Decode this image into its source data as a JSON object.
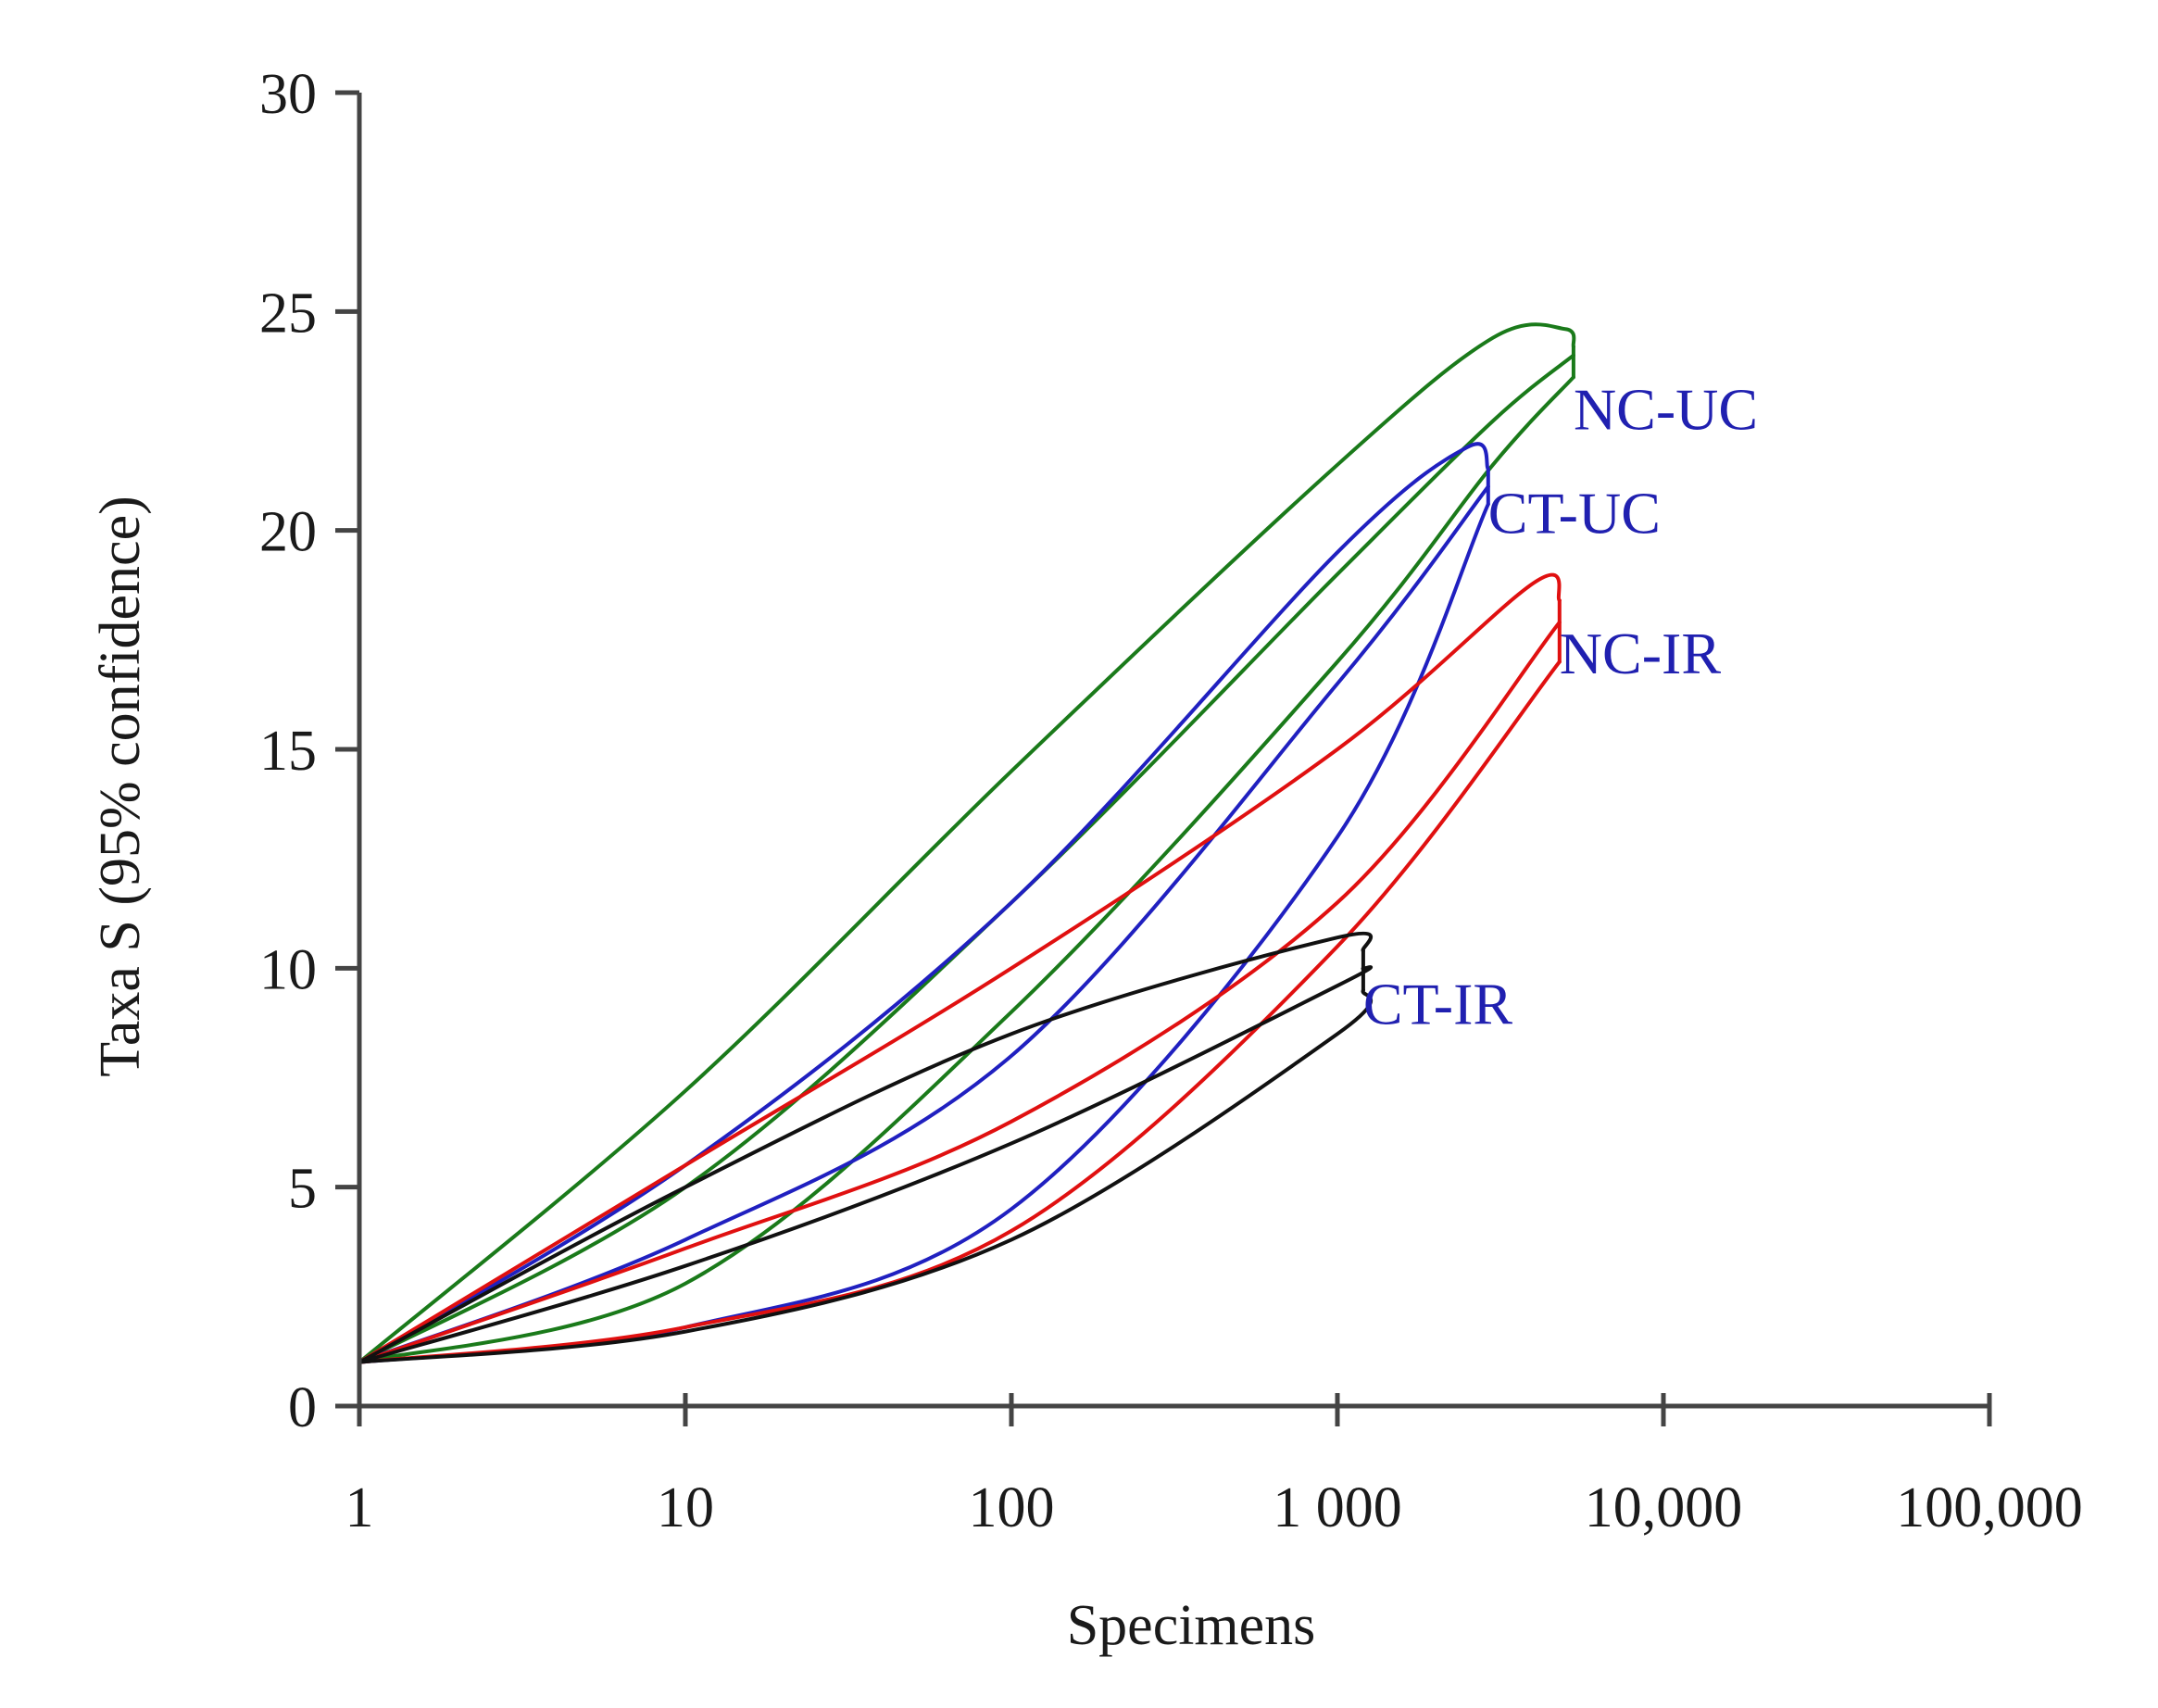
{
  "chart_data": {
    "type": "line",
    "title": "",
    "xlabel": "Specimens",
    "ylabel": "Taxa S (95% confidence)",
    "xscale": "log",
    "xlim": [
      1,
      100000
    ],
    "ylim": [
      0,
      30
    ],
    "x_ticks": [
      1,
      10,
      100,
      1000,
      10000,
      100000
    ],
    "x_tick_labels": [
      "1",
      "10",
      "100",
      "1 000",
      "10,000",
      "100,000"
    ],
    "y_ticks": [
      0,
      5,
      10,
      15,
      20,
      25,
      30
    ],
    "y_tick_labels": [
      "0",
      "5",
      "10",
      "15",
      "20",
      "25",
      "30"
    ],
    "grid": false,
    "legend": "direct labels at curve ends",
    "series": [
      {
        "name": "NC-UC",
        "label": "NC-UC",
        "color": "#1a7a1a",
        "label_color": "#2020b0",
        "upper": [
          [
            1,
            1
          ],
          [
            10,
            7.2
          ],
          [
            100,
            14.5
          ],
          [
            1000,
            21.5
          ],
          [
            3000,
            24.4
          ],
          [
            5000,
            24.6
          ],
          [
            5300,
            24.2
          ]
        ],
        "mean": [
          [
            1,
            1
          ],
          [
            10,
            5.0
          ],
          [
            100,
            11.5
          ],
          [
            1000,
            19.0
          ],
          [
            3000,
            22.5
          ],
          [
            5300,
            24.0
          ]
        ],
        "lower": [
          [
            1,
            1
          ],
          [
            10,
            2.8
          ],
          [
            100,
            9.0
          ],
          [
            1000,
            17.0
          ],
          [
            3000,
            21.5
          ],
          [
            5300,
            23.5
          ]
        ]
      },
      {
        "name": "CT-UC",
        "label": "CT-UC",
        "color": "#2020c0",
        "label_color": "#2020b0",
        "upper": [
          [
            1,
            1
          ],
          [
            10,
            5.5
          ],
          [
            100,
            11.5
          ],
          [
            1000,
            19.5
          ],
          [
            2500,
            21.9
          ],
          [
            2900,
            21.4
          ]
        ],
        "mean": [
          [
            1,
            1
          ],
          [
            10,
            3.8
          ],
          [
            100,
            8.0
          ],
          [
            1000,
            16.5
          ],
          [
            2900,
            21.0
          ]
        ],
        "lower": [
          [
            1,
            1
          ],
          [
            10,
            1.8
          ],
          [
            100,
            4.5
          ],
          [
            1000,
            13.0
          ],
          [
            2900,
            20.6
          ]
        ]
      },
      {
        "name": "NC-IR",
        "label": "NC-IR",
        "color": "#e01010",
        "label_color": "#2020b0",
        "upper": [
          [
            1,
            1
          ],
          [
            10,
            5.5
          ],
          [
            100,
            10.0
          ],
          [
            1000,
            15.0
          ],
          [
            4000,
            18.8
          ],
          [
            4800,
            18.4
          ]
        ],
        "mean": [
          [
            1,
            1
          ],
          [
            10,
            3.6
          ],
          [
            100,
            6.5
          ],
          [
            1000,
            11.5
          ],
          [
            4800,
            17.9
          ]
        ],
        "lower": [
          [
            1,
            1
          ],
          [
            10,
            1.8
          ],
          [
            100,
            4.0
          ],
          [
            1000,
            10.5
          ],
          [
            4800,
            17.0
          ]
        ]
      },
      {
        "name": "CT-IR",
        "label": "CT-IR",
        "color": "#111111",
        "label_color": "#2020b0",
        "upper": [
          [
            1,
            1
          ],
          [
            10,
            5.0
          ],
          [
            100,
            8.5
          ],
          [
            1000,
            10.7
          ],
          [
            1200,
            10.4
          ]
        ],
        "mean": [
          [
            1,
            1
          ],
          [
            10,
            3.2
          ],
          [
            100,
            6.0
          ],
          [
            1000,
            9.6
          ],
          [
            1200,
            10.0
          ]
        ],
        "lower": [
          [
            1,
            1
          ],
          [
            10,
            1.7
          ],
          [
            100,
            3.8
          ],
          [
            1000,
            8.5
          ],
          [
            1200,
            9.5
          ]
        ]
      }
    ]
  }
}
